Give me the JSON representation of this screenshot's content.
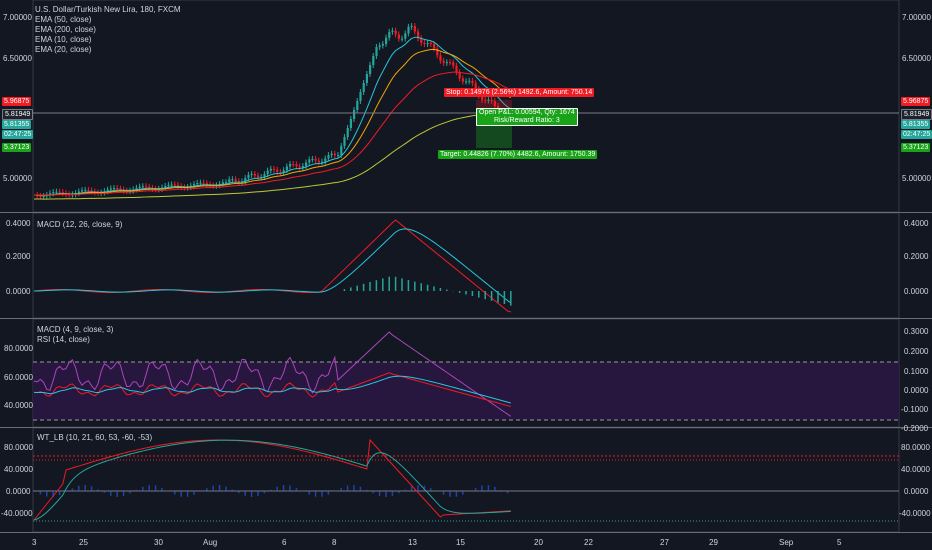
{
  "main_pane": {
    "title": "U.S. Dollar/Turkish New Lira, 180, FXCM",
    "legend": [
      "EMA (50, close)",
      "EMA (200, close)",
      "EMA (10, close)",
      "EMA (20, close)"
    ],
    "price_ticks": [
      "7.00000",
      "6.50000",
      "5.00000"
    ],
    "price_badges": [
      {
        "text": "5.96875",
        "color": "#ef1c24"
      },
      {
        "text": "5.81949",
        "color": "#131722"
      },
      {
        "text": "5.81355",
        "color": "#26a69a"
      },
      {
        "text": "02:47:25",
        "color": "#26a69a"
      },
      {
        "text": "5.37123",
        "color": "#18a318"
      }
    ],
    "stop_label": "Stop: 0.14976 (2.56%) 1492.6, Amount: 750.14",
    "open_label": "Open P&L: 0.00594, Qty: 1674",
    "rr_label": "Risk/Reward Ratio: 3",
    "target_label": "Target: 0.44826 (7.70%) 4482.6, Amount: 1750.39"
  },
  "macd_pane": {
    "title": "MACD (12, 26, close, 9)",
    "ticks": [
      "0.4000",
      "0.2000",
      "0.0000"
    ]
  },
  "rsi_pane": {
    "title1": "MACD (4, 9, close, 3)",
    "title2": "RSI (14, close)",
    "left_ticks": [
      "80.0000",
      "60.0000",
      "40.0000"
    ],
    "right_ticks": [
      "0.3000",
      "0.2000",
      "0.1000",
      "0.0000",
      "-0.1000",
      "-0.2000"
    ]
  },
  "wt_pane": {
    "title": "WT_LB (10, 21, 60, 53, -60, -53)",
    "left_ticks": [
      "80.0000",
      "40.0000",
      "0.0000",
      "-40.0000"
    ],
    "right_ticks": [
      "80.0000",
      "40.0000",
      "0.0000",
      "-40.0000"
    ]
  },
  "time_axis": [
    "3",
    "25",
    "30",
    "Aug",
    "6",
    "8",
    "13",
    "15",
    "20",
    "22",
    "27",
    "29",
    "Sep",
    "5"
  ],
  "colors": {
    "background": "#131722",
    "up_candle": "#26a69a",
    "down_candle": "#ef1c24",
    "ema50": "#f7a600",
    "ema200": "#c0ca33",
    "ema10": "#26c6da",
    "ema20": "#ef1c24"
  }
}
